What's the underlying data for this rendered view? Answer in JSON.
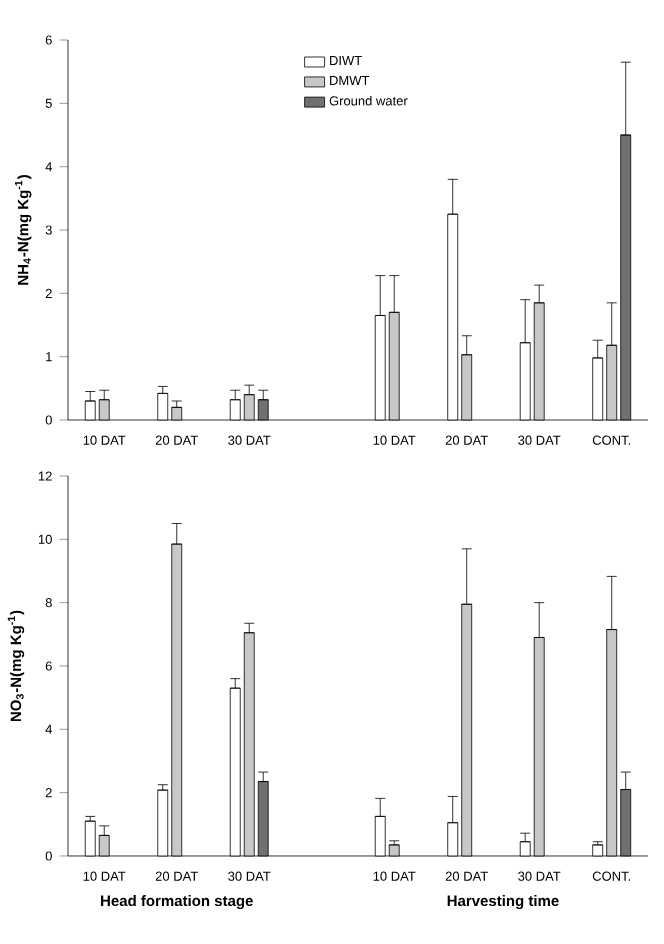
{
  "chart_data": [
    {
      "type": "bar",
      "ylabel": "NH$_{4}$-N(mg Kg$^{-1}$)",
      "categories": [
        "10 DAT",
        "20 DAT",
        "30 DAT",
        null,
        "10 DAT",
        "20 DAT",
        "30 DAT",
        "CONT."
      ],
      "ylim": [
        0,
        6
      ],
      "yticks": [
        0,
        1,
        2,
        3,
        4,
        5,
        6
      ],
      "legend": "top",
      "series": [
        {
          "name": "DIWT",
          "color": "#ffffff",
          "values": [
            0.3,
            0.42,
            0.32,
            null,
            1.65,
            3.25,
            1.22,
            0.98
          ],
          "errors": [
            [
              0.3,
              0.45
            ],
            [
              0.42,
              0.53
            ],
            [
              0.32,
              0.47
            ],
            null,
            [
              1.65,
              2.28
            ],
            [
              3.25,
              3.8
            ],
            [
              1.22,
              1.9
            ],
            [
              0.98,
              1.26
            ]
          ]
        },
        {
          "name": "DMWT",
          "color": "#c8c8c8",
          "values": [
            0.32,
            0.2,
            0.4,
            null,
            1.7,
            1.03,
            1.85,
            1.18
          ],
          "errors": [
            [
              0.32,
              0.47
            ],
            [
              0.2,
              0.3
            ],
            [
              0.4,
              0.55
            ],
            null,
            [
              1.7,
              2.28
            ],
            [
              1.03,
              1.33
            ],
            [
              1.85,
              2.13
            ],
            [
              1.18,
              1.85
            ]
          ]
        },
        {
          "name": "Ground water",
          "color": "#707070",
          "values": [
            null,
            null,
            0.32,
            null,
            null,
            null,
            null,
            4.5
          ],
          "errors": [
            null,
            null,
            [
              0.32,
              0.47
            ],
            null,
            null,
            null,
            null,
            [
              4.5,
              5.65
            ]
          ]
        }
      ]
    },
    {
      "type": "bar",
      "ylabel": "NO$_{3}$-N(mg Kg$^{-1}$)",
      "categories": [
        "10 DAT",
        "20 DAT",
        "30 DAT",
        null,
        "10 DAT",
        "20 DAT",
        "30 DAT",
        "CONT."
      ],
      "ylim": [
        0,
        12
      ],
      "yticks": [
        0,
        2,
        4,
        6,
        8,
        10,
        12
      ],
      "annotations": [
        "Head formation stage",
        "Harvesting time"
      ],
      "series": [
        {
          "color": "#ffffff",
          "values": [
            1.1,
            2.08,
            5.3,
            null,
            1.25,
            1.05,
            0.45,
            0.35
          ],
          "errors": [
            [
              1.1,
              1.25
            ],
            [
              2.08,
              2.25
            ],
            [
              5.3,
              5.6
            ],
            null,
            [
              1.25,
              1.82
            ],
            [
              1.05,
              1.88
            ],
            [
              0.45,
              0.72
            ],
            [
              0.35,
              0.45
            ]
          ]
        },
        {
          "color": "#c8c8c8",
          "values": [
            0.65,
            9.85,
            7.05,
            null,
            0.35,
            7.95,
            6.9,
            7.15
          ],
          "errors": [
            [
              0.65,
              0.95
            ],
            [
              9.85,
              10.5
            ],
            [
              7.05,
              7.35
            ],
            null,
            [
              0.35,
              0.48
            ],
            [
              7.95,
              9.7
            ],
            [
              6.9,
              8.0
            ],
            [
              7.15,
              8.83
            ]
          ]
        },
        {
          "color": "#707070",
          "values": [
            null,
            null,
            2.35,
            null,
            null,
            null,
            null,
            2.1
          ],
          "errors": [
            null,
            null,
            [
              2.35,
              2.65
            ],
            null,
            null,
            null,
            null,
            [
              2.1,
              2.65
            ]
          ]
        }
      ]
    }
  ]
}
